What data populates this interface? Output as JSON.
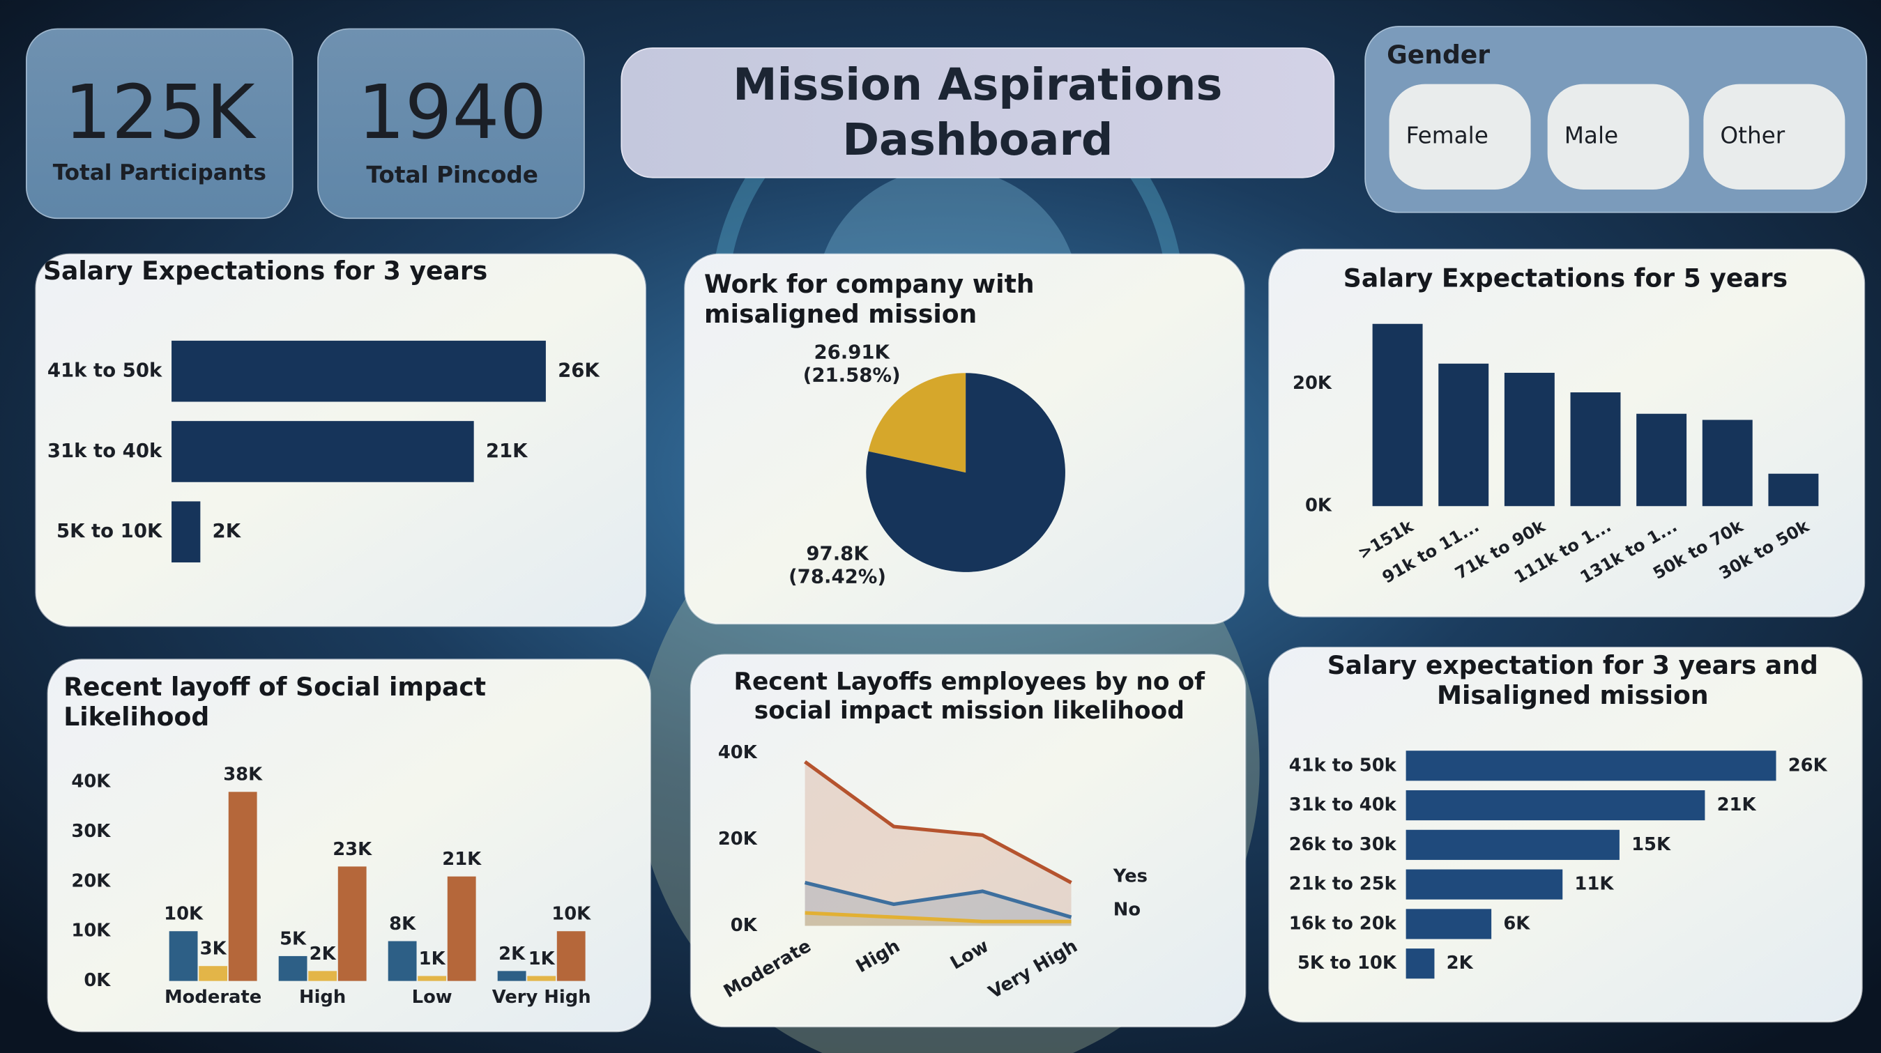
{
  "dashboard": {
    "title": "Mission Aspirations Dashboard"
  },
  "kpis": [
    {
      "value": "125K",
      "label": "Total Participants"
    },
    {
      "value": "1940",
      "label": "Total Pincode"
    }
  ],
  "gender_filter": {
    "title": "Gender",
    "options": [
      "Female",
      "Male",
      "Other"
    ]
  },
  "chart_data": [
    {
      "type": "bar",
      "orientation": "horizontal",
      "title": "Salary Expectations for 3 years",
      "categories": [
        "41k to 50k",
        "31k to 40k",
        "5K to 10K"
      ],
      "values": [
        26000,
        21000,
        2000
      ],
      "value_labels": [
        "26K",
        "21K",
        "2K"
      ],
      "color": "#16345a",
      "xlim": [
        0,
        30000
      ]
    },
    {
      "type": "pie",
      "title": "Work for company with misaligned mission",
      "values": [
        26910,
        97800
      ],
      "value_labels": [
        "26.91K (21.58%)",
        "97.8K (78.42%)"
      ],
      "colors": [
        "#d6a72b",
        "#16345a"
      ]
    },
    {
      "type": "bar",
      "orientation": "vertical",
      "title": "Salary Expectations for 5 years",
      "categories": [
        ">151k",
        "91k to 11...",
        "71k to 90k",
        "111k to 1...",
        "131k to 1...",
        "50k to 70k",
        "30k to 50k"
      ],
      "values": [
        29800,
        23300,
        21800,
        18600,
        15100,
        14100,
        5300
      ],
      "color": "#16345a",
      "ylim": [
        0,
        30000
      ],
      "yticks": [
        {
          "value": 0,
          "label": "0K"
        },
        {
          "value": 20000,
          "label": "20K"
        }
      ]
    },
    {
      "type": "bar",
      "orientation": "vertical",
      "title": "Recent layoff of Social impact Likelihood",
      "categories": [
        "Moderate",
        "High",
        "Low",
        "Very High"
      ],
      "series": [
        {
          "color": "#2d5f86",
          "values": [
            10000,
            5000,
            8000,
            2000
          ],
          "value_labels": [
            "10K",
            "5K",
            "8K",
            "2K"
          ]
        },
        {
          "color": "#e3b548",
          "values": [
            3000,
            2000,
            1000,
            1000
          ],
          "value_labels": [
            "3K",
            "2K",
            "1K",
            "1K"
          ]
        },
        {
          "color": "#b5673a",
          "values": [
            38000,
            23000,
            21000,
            10000
          ],
          "value_labels": [
            "38K",
            "23K",
            "21K",
            "10K"
          ]
        }
      ],
      "ylim": [
        0,
        40000
      ],
      "yticks": [
        {
          "value": 0,
          "label": "0K"
        },
        {
          "value": 10000,
          "label": "10K"
        },
        {
          "value": 20000,
          "label": "20K"
        },
        {
          "value": 30000,
          "label": "30K"
        },
        {
          "value": 40000,
          "label": "40K"
        }
      ]
    },
    {
      "type": "area",
      "title": "Recent Layoffs employees by no of social impact mission likelihood",
      "categories": [
        "Moderate",
        "High",
        "Low",
        "Very High"
      ],
      "series": [
        {
          "name": "Yes",
          "color": "#b5532e",
          "values": [
            38000,
            23000,
            21000,
            10000
          ]
        },
        {
          "name": "No",
          "color": "#3d6f9e",
          "values": [
            10000,
            5000,
            8000,
            2000
          ]
        },
        {
          "color": "#e2b033",
          "values": [
            3000,
            2000,
            1000,
            1000
          ]
        }
      ],
      "ylim": [
        0,
        40000
      ],
      "yticks": [
        {
          "value": 0,
          "label": "0K"
        },
        {
          "value": 20000,
          "label": "20K"
        },
        {
          "value": 40000,
          "label": "40K"
        }
      ]
    },
    {
      "type": "bar",
      "orientation": "horizontal",
      "title": "Salary expectation for 3 years and Misaligned mission",
      "categories": [
        "41k to 50k",
        "31k to 40k",
        "26k to 30k",
        "21k to 25k",
        "16k to 20k",
        "5K to 10K"
      ],
      "values": [
        26000,
        21000,
        15000,
        11000,
        6000,
        2000
      ],
      "value_labels": [
        "26K",
        "21K",
        "15K",
        "11K",
        "6K",
        "2K"
      ],
      "color": "#1f4a7c",
      "xlim": [
        0,
        30000
      ]
    }
  ]
}
